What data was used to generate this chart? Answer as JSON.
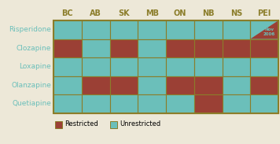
{
  "rows": [
    "Risperidone",
    "Clozapine",
    "Loxapine",
    "Olanzapine",
    "Quetiapine"
  ],
  "cols": [
    "BC",
    "AB",
    "SK",
    "MB",
    "ON",
    "NB",
    "NS",
    "PEI"
  ],
  "grid": [
    [
      0,
      0,
      0,
      0,
      0,
      0,
      0,
      2
    ],
    [
      1,
      0,
      1,
      0,
      1,
      1,
      1,
      1
    ],
    [
      0,
      0,
      0,
      0,
      0,
      0,
      0,
      0
    ],
    [
      0,
      1,
      1,
      0,
      1,
      1,
      0,
      1
    ],
    [
      0,
      0,
      0,
      0,
      0,
      1,
      0,
      0
    ]
  ],
  "color_unrestricted": "#6BBFBA",
  "color_restricted": "#9B4035",
  "color_border": "#8B7D2A",
  "color_header_text": "#8B7D2A",
  "color_row_text": "#6BBFBA",
  "color_note_text": "#6BBFBA",
  "color_bg": "#EDE8D8",
  "note_text": "Nov\n2006",
  "legend_restricted": "Restricted",
  "legend_unrestricted": "Unrestricted",
  "figsize": [
    3.56,
    1.83
  ],
  "dpi": 100
}
